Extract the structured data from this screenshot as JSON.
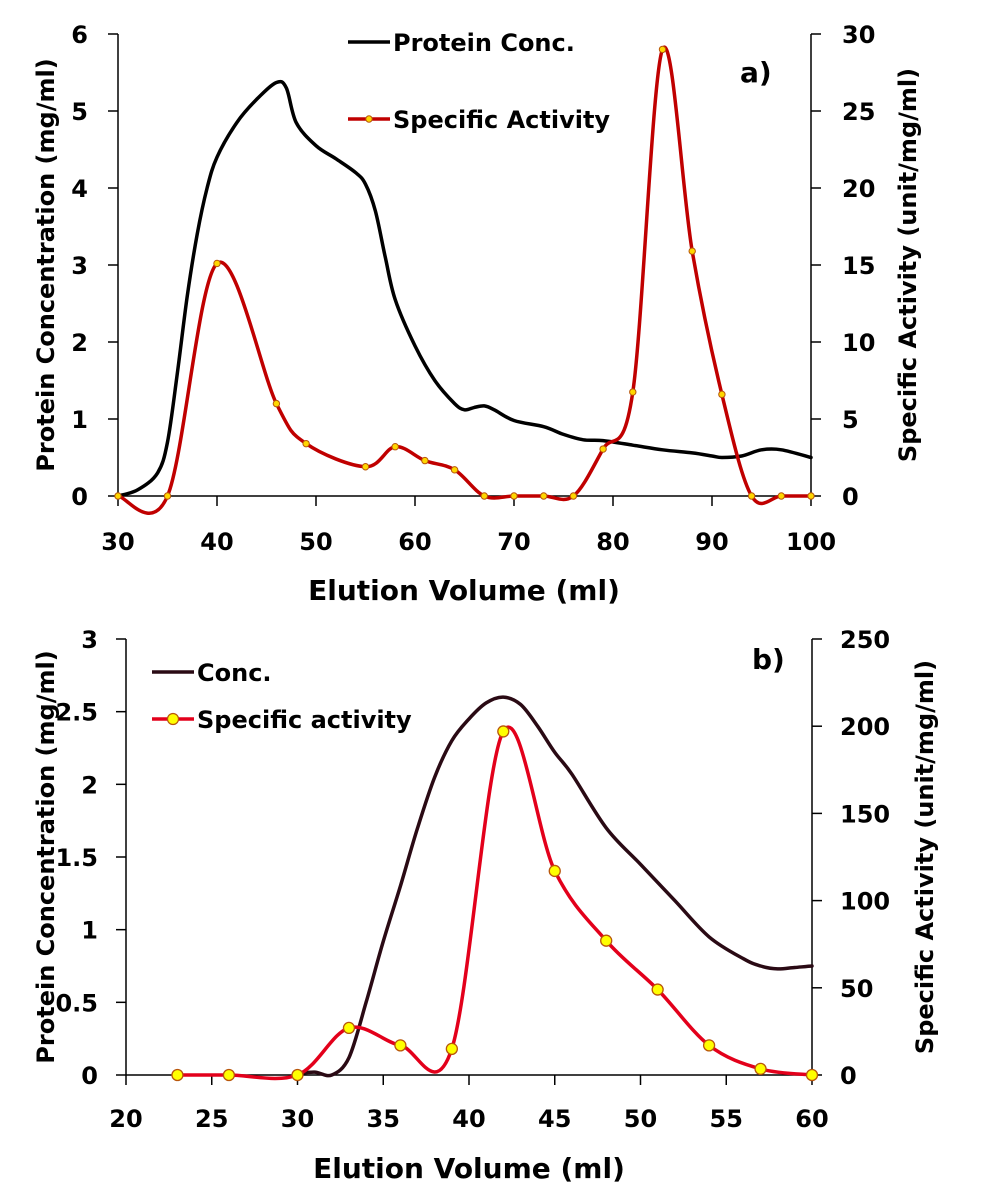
{
  "chart_data": [
    {
      "type": "line",
      "panel_label": "a)",
      "title": "",
      "xlabel": "Elution Volume (ml)",
      "ylabel": "Protein Concentration (mg/ml)",
      "y2label": "Specific Activity (unit/mg/ml)",
      "xlim": [
        30,
        100
      ],
      "ylim": [
        0,
        6
      ],
      "y2lim": [
        0,
        30
      ],
      "x_ticks": [
        "30",
        "40",
        "50",
        "60",
        "70",
        "80",
        "90",
        "100"
      ],
      "y_ticks": [
        "0",
        "1",
        "2",
        "3",
        "4",
        "5",
        "6"
      ],
      "y2_ticks": [
        "0",
        "5",
        "10",
        "15",
        "20",
        "25",
        "30"
      ],
      "grid": false,
      "legend_position": "top-center",
      "series": [
        {
          "name": "Protein Conc.",
          "axis": "left",
          "color": "#000000",
          "markers": false,
          "x": [
            30,
            32,
            34,
            35,
            36,
            37,
            38,
            39,
            40,
            42,
            44,
            46,
            47,
            48,
            50,
            52,
            54,
            55,
            56,
            57,
            58,
            60,
            62,
            64,
            65,
            66,
            67,
            68,
            70,
            73,
            75,
            77,
            79,
            82,
            85,
            88,
            90,
            91,
            93,
            95,
            97,
            100
          ],
          "values": [
            0,
            0.08,
            0.3,
            0.7,
            1.6,
            2.6,
            3.4,
            4.0,
            4.4,
            4.85,
            5.15,
            5.37,
            5.3,
            4.85,
            4.55,
            4.38,
            4.2,
            4.05,
            3.7,
            3.1,
            2.55,
            1.95,
            1.5,
            1.2,
            1.12,
            1.15,
            1.17,
            1.12,
            0.98,
            0.9,
            0.8,
            0.73,
            0.72,
            0.66,
            0.6,
            0.56,
            0.52,
            0.5,
            0.52,
            0.6,
            0.6,
            0.5
          ]
        },
        {
          "name": "Specific Activity",
          "axis": "right",
          "color": "#c00000",
          "marker_color": "#ffd700",
          "markers": true,
          "x": [
            30,
            35,
            40,
            46,
            49,
            55,
            58,
            61,
            64,
            67,
            70,
            73,
            76,
            79,
            82,
            85,
            88,
            91,
            94,
            97,
            100
          ],
          "values": [
            0,
            0,
            15.1,
            6.0,
            3.4,
            1.9,
            3.2,
            2.3,
            1.7,
            0,
            0,
            0,
            0,
            3.05,
            6.75,
            29.0,
            15.9,
            6.6,
            0,
            0,
            0
          ]
        }
      ]
    },
    {
      "type": "line",
      "panel_label": "b)",
      "title": "",
      "xlabel": "Elution Volume (ml)",
      "ylabel": "Protein Concentration (mg/ml)",
      "y2label": "Specific Activity (unit/mg/ml)",
      "xlim": [
        20,
        60
      ],
      "ylim": [
        0,
        3
      ],
      "y2lim": [
        0,
        250
      ],
      "x_ticks": [
        "20",
        "25",
        "30",
        "35",
        "40",
        "45",
        "50",
        "55",
        "60"
      ],
      "y_ticks": [
        "0",
        "0.5",
        "1",
        "1.5",
        "2",
        "2.5",
        "3"
      ],
      "y2_ticks": [
        "0",
        "50",
        "100",
        "150",
        "200",
        "250"
      ],
      "grid": false,
      "legend_position": "top-left",
      "series": [
        {
          "name": "Conc.",
          "axis": "left",
          "color": "#2a0a14",
          "markers": false,
          "x": [
            30,
            31,
            32,
            33,
            34,
            35,
            36,
            37,
            38,
            39,
            40,
            41,
            42,
            43,
            44,
            45,
            46,
            48,
            50,
            52,
            54,
            56,
            57,
            58,
            59,
            60
          ],
          "values": [
            0.01,
            0.02,
            0.0,
            0.12,
            0.5,
            0.92,
            1.3,
            1.7,
            2.05,
            2.3,
            2.45,
            2.56,
            2.6,
            2.55,
            2.4,
            2.22,
            2.07,
            1.7,
            1.45,
            1.2,
            0.95,
            0.8,
            0.75,
            0.73,
            0.74,
            0.75
          ]
        },
        {
          "name": "Specific activity",
          "axis": "right",
          "color": "#e3001b",
          "marker_color": "#ffff00",
          "markers": true,
          "x": [
            23,
            26,
            30,
            33,
            36,
            39,
            42,
            45,
            48,
            51,
            54,
            57,
            60
          ],
          "values": [
            0,
            0,
            0,
            27,
            17,
            15,
            197,
            117,
            77,
            49,
            17,
            3.5,
            0
          ]
        }
      ]
    }
  ]
}
